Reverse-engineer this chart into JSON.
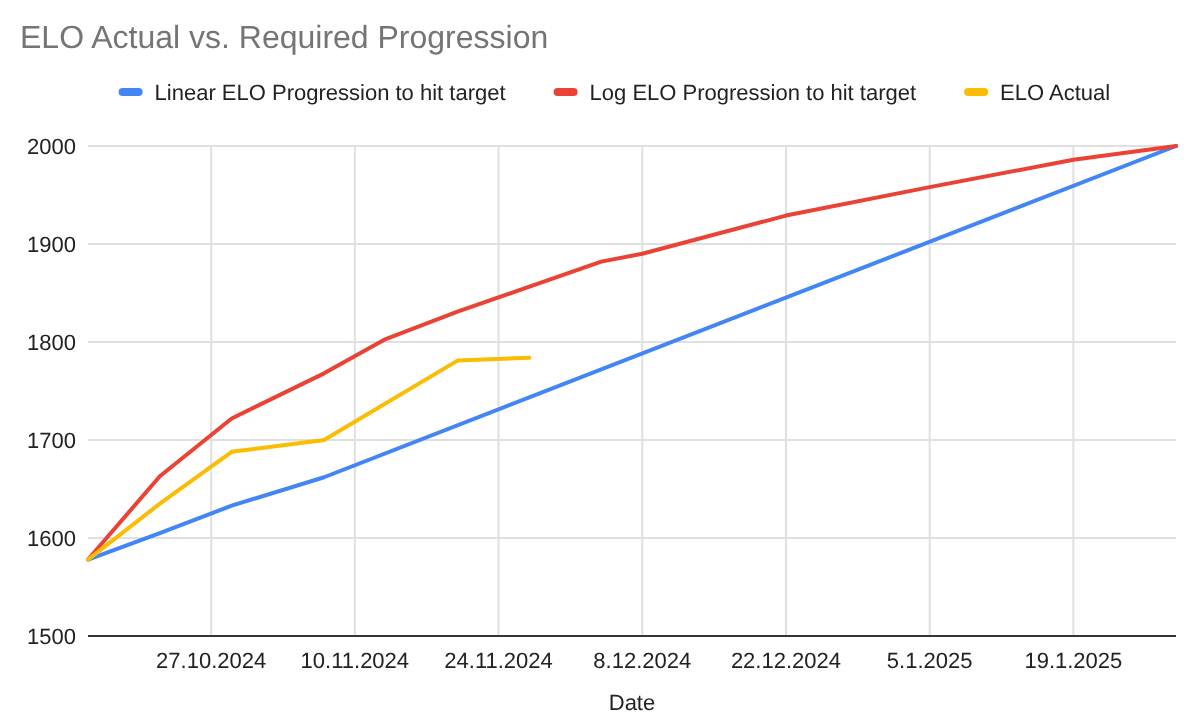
{
  "chart_data": {
    "type": "line",
    "title": "ELO Actual vs. Required Progression",
    "xlabel": "Date",
    "xlim": [
      "2024-10-15",
      "2025-01-29"
    ],
    "xticks": [
      {
        "value": "2024-10-27",
        "label": "27.10.2024"
      },
      {
        "value": "2024-11-10",
        "label": "10.11.2024"
      },
      {
        "value": "2024-11-24",
        "label": "24.11.2024"
      },
      {
        "value": "2024-12-08",
        "label": "8.12.2024"
      },
      {
        "value": "2024-12-22",
        "label": "22.12.2024"
      },
      {
        "value": "2025-01-05",
        "label": "5.1.2025"
      },
      {
        "value": "2025-01-19",
        "label": "19.1.2025"
      }
    ],
    "ylim": [
      1500,
      2000
    ],
    "yticks": [
      1500,
      1600,
      1700,
      1800,
      1900,
      2000
    ],
    "grid": true,
    "legend": "top",
    "marker": "none",
    "line_style": "solid",
    "series": [
      {
        "name": "Linear ELO Progression to hit target",
        "color": "#4285f4",
        "x": [
          "2024-10-15",
          "2024-10-22",
          "2024-10-29",
          "2024-11-07",
          "2025-01-29"
        ],
        "values": [
          1578,
          1605,
          1633,
          1662,
          2000
        ]
      },
      {
        "name": "Log ELO Progression to hit target",
        "color": "#ea4335",
        "x": [
          "2024-10-15",
          "2024-10-22",
          "2024-10-29",
          "2024-11-07",
          "2024-11-13",
          "2024-11-20",
          "2024-12-04",
          "2024-12-08",
          "2024-12-22",
          "2025-01-05",
          "2025-01-19",
          "2025-01-29"
        ],
        "values": [
          1578,
          1663,
          1722,
          1768,
          1803,
          1831,
          1882,
          1890,
          1929,
          1958,
          1986,
          2000
        ]
      },
      {
        "name": "ELO Actual",
        "color": "#fbbc04",
        "x": [
          "2024-10-15",
          "2024-10-22",
          "2024-10-29",
          "2024-11-07",
          "2024-11-20",
          "2024-11-27"
        ],
        "values": [
          1578,
          1635,
          1688,
          1700,
          1781,
          1784
        ]
      }
    ]
  }
}
